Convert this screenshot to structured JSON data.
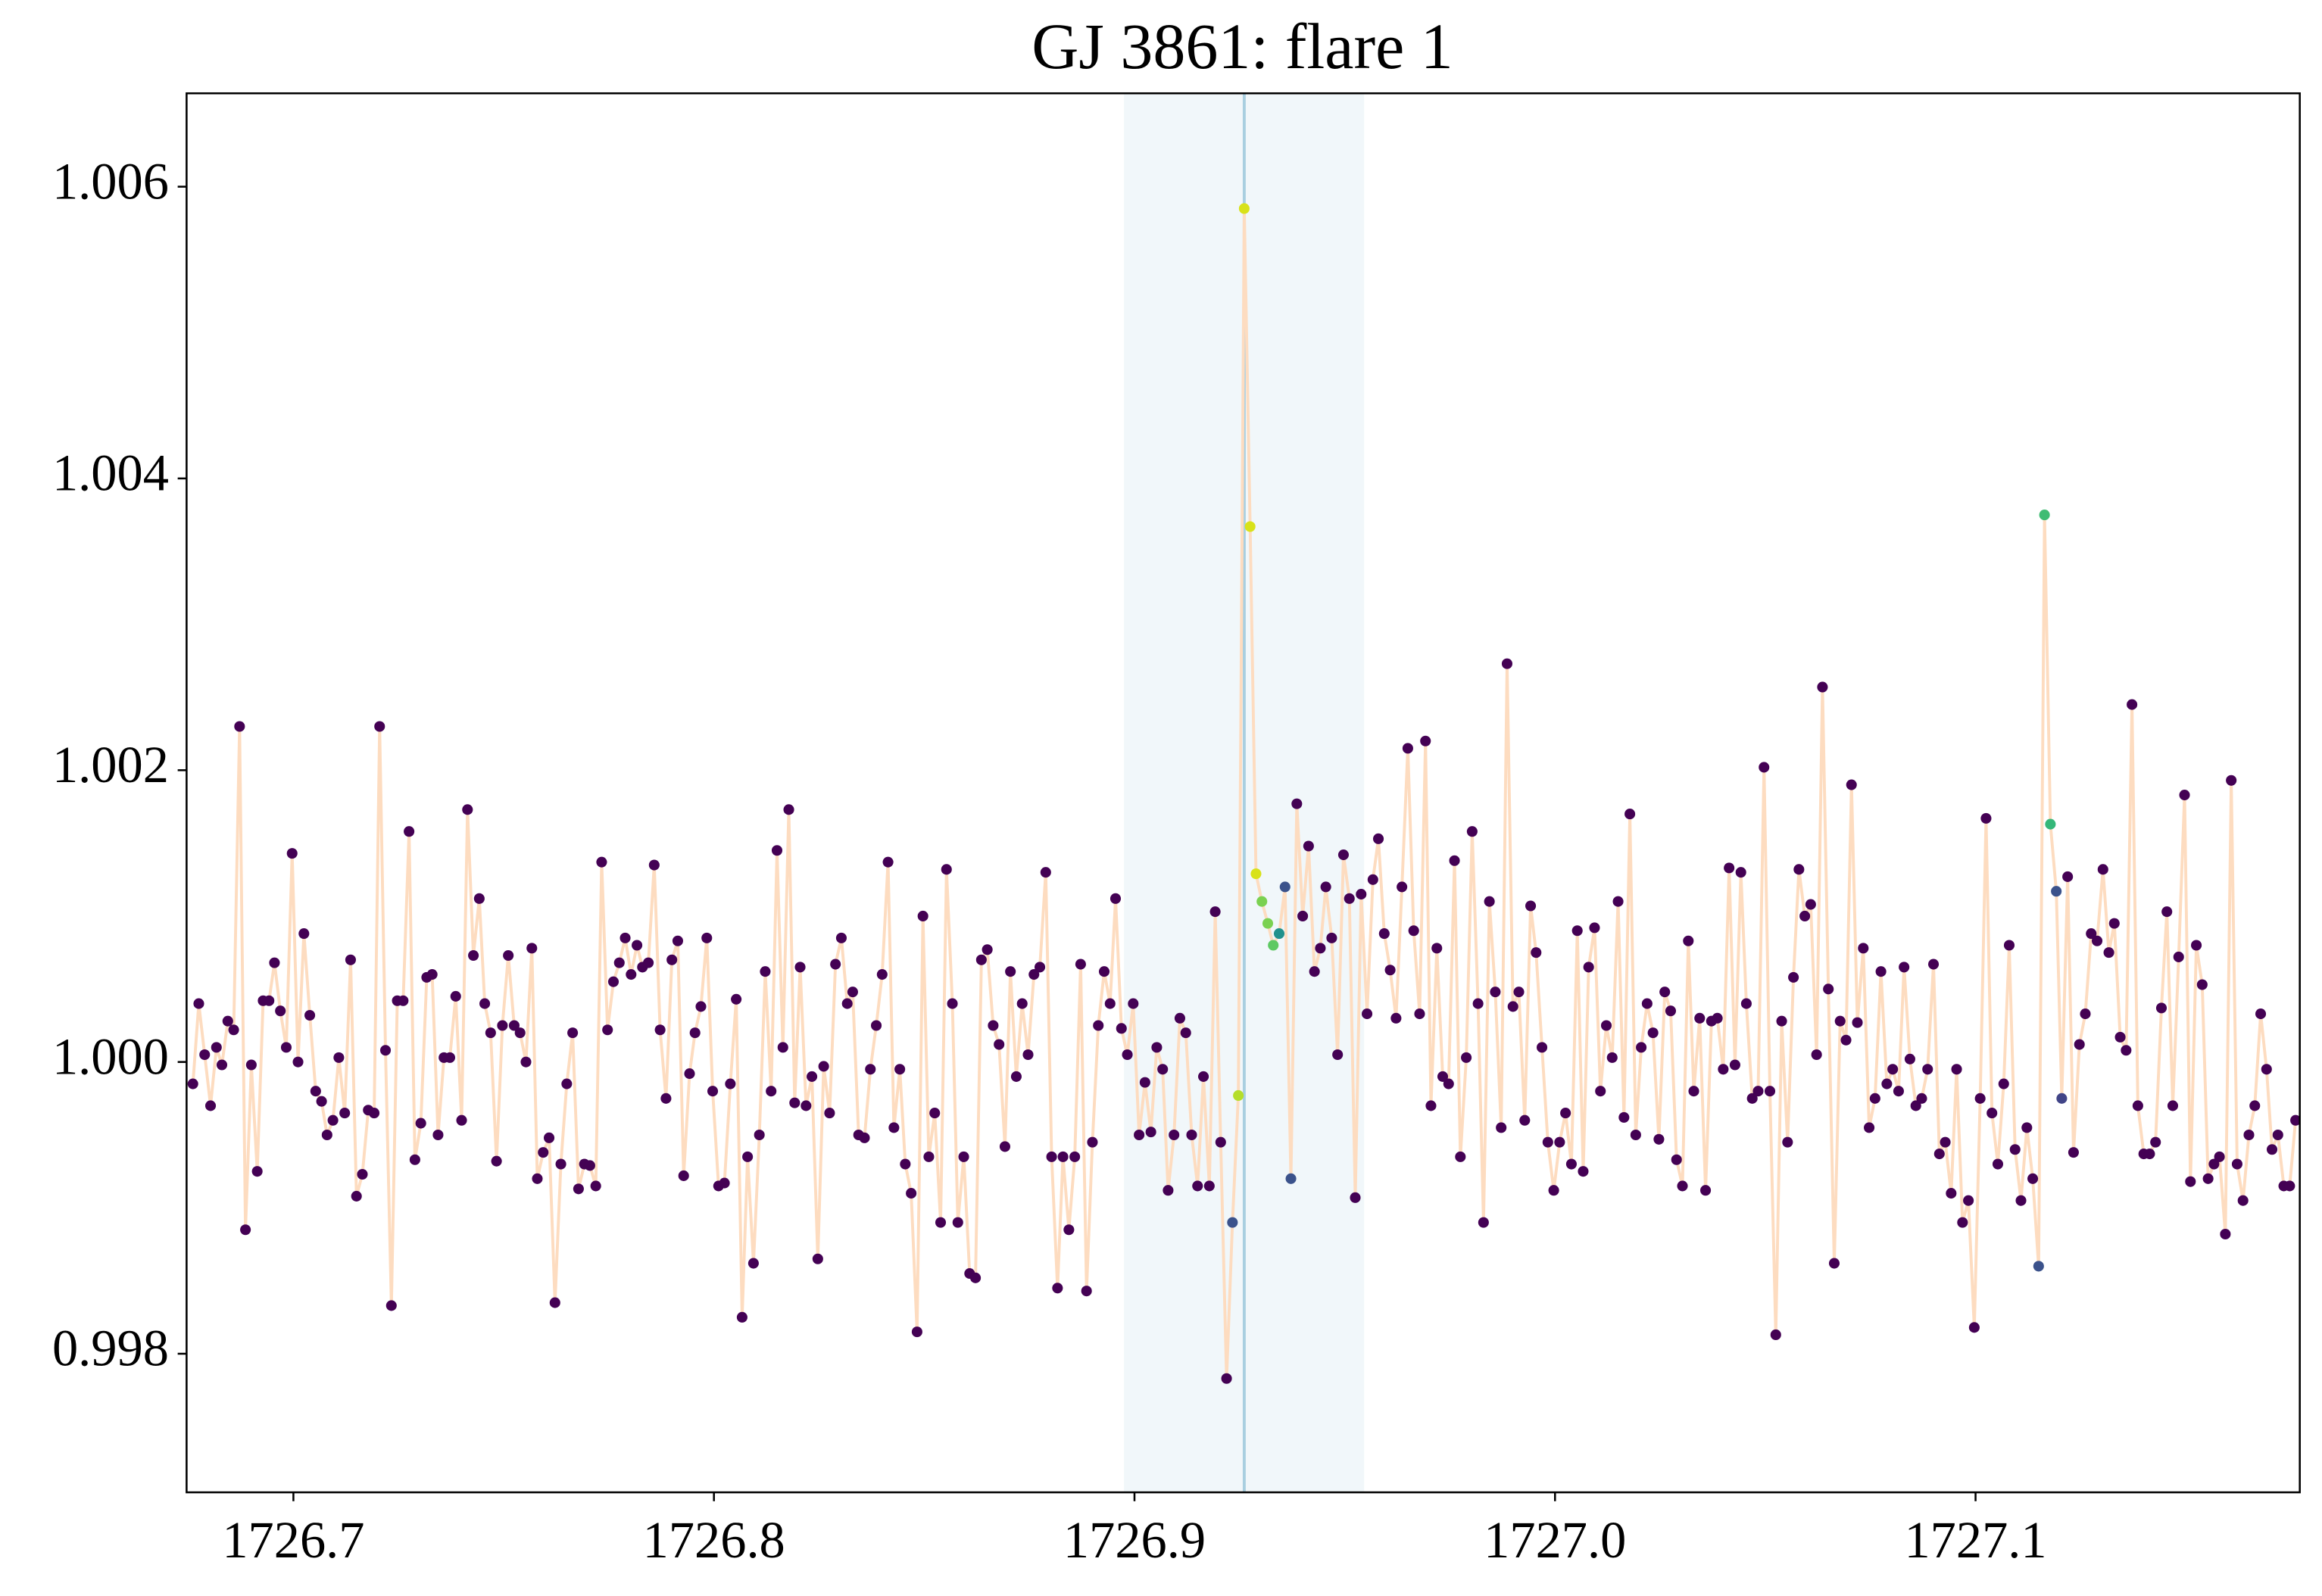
{
  "chart_data": {
    "type": "scatter-line",
    "title": "GJ 3861: flare 1",
    "xlim": [
      1726.6746,
      1727.1771
    ],
    "ylim": [
      0.99705,
      1.00664
    ],
    "xticks": [
      1726.7,
      1726.8,
      1726.9,
      {
        "value": 1727,
        "label": "1727.0"
      },
      1727.1
    ],
    "yticks": [
      0.998,
      {
        "value": 1,
        "label": "1.000"
      },
      1.002,
      1.004,
      1.006
    ],
    "span": [
      1726.8975,
      1726.9546
    ],
    "span_color": "#f1f7fa",
    "vline": 1726.9261,
    "vline_color": "#a9cfe0",
    "series": [
      {
        "color": "#440154",
        "line_color": "#fddcc0",
        "marker_colors": {
          "178": "#3b528b",
          "179": "#b5de2b",
          "180": "#d8e219",
          "181": "#d8e219",
          "182": "#d8e219",
          "183": "#7ad151",
          "184": "#7ad151",
          "185": "#5ec962",
          "186": "#21918c",
          "187": "#3b528b",
          "188": "#3b528b",
          "316": "#3b528b",
          "317": "#3fbc73",
          "318": "#35b779",
          "319": "#3b528b",
          "320": "#414487"
        },
        "x": [
          1726.6761,
          1726.6775,
          1726.6789,
          1726.6803,
          1726.6817,
          1726.683,
          1726.6844,
          1726.6858,
          1726.6872,
          1726.6886,
          1726.69,
          1726.6914,
          1726.6928,
          1726.6942,
          1726.6955,
          1726.6969,
          1726.6983,
          1726.6997,
          1726.7011,
          1726.7025,
          1726.7039,
          1726.7053,
          1726.7067,
          1726.708,
          1726.7094,
          1726.7108,
          1726.7122,
          1726.7136,
          1726.715,
          1726.7164,
          1726.7178,
          1726.7192,
          1726.7205,
          1726.7219,
          1726.7233,
          1726.7247,
          1726.7261,
          1726.7275,
          1726.7289,
          1726.7303,
          1726.7317,
          1726.733,
          1726.7344,
          1726.7358,
          1726.7372,
          1726.7386,
          1726.74,
          1726.7414,
          1726.7428,
          1726.7442,
          1726.7455,
          1726.7469,
          1726.7483,
          1726.7497,
          1726.7511,
          1726.7525,
          1726.7539,
          1726.7553,
          1726.7567,
          1726.758,
          1726.7594,
          1726.7608,
          1726.7622,
          1726.7636,
          1726.765,
          1726.7664,
          1726.7678,
          1726.7692,
          1726.7705,
          1726.7719,
          1726.7733,
          1726.7747,
          1726.7761,
          1726.7775,
          1726.7789,
          1726.7803,
          1726.7817,
          1726.783,
          1726.7844,
          1726.7858,
          1726.7872,
          1726.7886,
          1726.79,
          1726.7914,
          1726.7928,
          1726.7942,
          1726.7955,
          1726.7969,
          1726.7983,
          1726.7997,
          1726.8011,
          1726.8025,
          1726.8039,
          1726.8053,
          1726.8067,
          1726.808,
          1726.8094,
          1726.8108,
          1726.8122,
          1726.8136,
          1726.815,
          1726.8164,
          1726.8178,
          1726.8192,
          1726.8205,
          1726.8219,
          1726.8233,
          1726.8247,
          1726.8261,
          1726.8275,
          1726.8289,
          1726.8303,
          1726.8317,
          1726.833,
          1726.8344,
          1726.8358,
          1726.8372,
          1726.8386,
          1726.84,
          1726.8414,
          1726.8428,
          1726.8442,
          1726.8455,
          1726.8469,
          1726.8483,
          1726.8497,
          1726.8511,
          1726.8525,
          1726.8539,
          1726.8553,
          1726.8567,
          1726.858,
          1726.8594,
          1726.8608,
          1726.8622,
          1726.8636,
          1726.865,
          1726.8664,
          1726.8678,
          1726.8692,
          1726.8705,
          1726.8719,
          1726.8733,
          1726.8747,
          1726.8761,
          1726.8775,
          1726.8789,
          1726.8803,
          1726.8817,
          1726.883,
          1726.8844,
          1726.8858,
          1726.8872,
          1726.8886,
          1726.89,
          1726.8914,
          1726.8928,
          1726.8942,
          1726.8955,
          1726.8969,
          1726.8983,
          1726.8997,
          1726.9011,
          1726.9025,
          1726.9039,
          1726.9053,
          1726.9067,
          1726.908,
          1726.9094,
          1726.9108,
          1726.9122,
          1726.9136,
          1726.915,
          1726.9164,
          1726.9178,
          1726.9192,
          1726.9205,
          1726.9219,
          1726.9233,
          1726.9247,
          1726.9261,
          1726.9275,
          1726.9289,
          1726.9303,
          1726.9317,
          1726.933,
          1726.9344,
          1726.9358,
          1726.9372,
          1726.9386,
          1726.94,
          1726.9414,
          1726.9428,
          1726.9442,
          1726.9455,
          1726.9469,
          1726.9483,
          1726.9497,
          1726.9511,
          1726.9525,
          1726.9539,
          1726.9553,
          1726.9567,
          1726.958,
          1726.9594,
          1726.9608,
          1726.9622,
          1726.9636,
          1726.965,
          1726.9664,
          1726.9678,
          1726.9692,
          1726.9705,
          1726.9719,
          1726.9733,
          1726.9747,
          1726.9761,
          1726.9775,
          1726.9789,
          1726.9803,
          1726.9817,
          1726.983,
          1726.9844,
          1726.9858,
          1726.9872,
          1726.9886,
          1726.99,
          1726.9914,
          1726.9928,
          1726.9942,
          1726.9955,
          1726.9969,
          1726.9983,
          1726.9997,
          1727.0011,
          1727.0025,
          1727.0039,
          1727.0053,
          1727.0067,
          1727.008,
          1727.0094,
          1727.0108,
          1727.0122,
          1727.0136,
          1727.015,
          1727.0164,
          1727.0178,
          1727.0192,
          1727.0205,
          1727.0219,
          1727.0233,
          1727.0247,
          1727.0261,
          1727.0275,
          1727.0289,
          1727.0303,
          1727.0317,
          1727.033,
          1727.0344,
          1727.0358,
          1727.0372,
          1727.0386,
          1727.04,
          1727.0414,
          1727.0428,
          1727.0442,
          1727.0455,
          1727.0469,
          1727.0483,
          1727.0497,
          1727.0511,
          1727.0525,
          1727.0539,
          1727.0553,
          1727.0567,
          1727.058,
          1727.0594,
          1727.0608,
          1727.0622,
          1727.0636,
          1727.065,
          1727.0664,
          1727.0678,
          1727.0692,
          1727.0705,
          1727.0719,
          1727.0733,
          1727.0747,
          1727.0761,
          1727.0775,
          1727.0789,
          1727.0803,
          1727.0817,
          1727.083,
          1727.0844,
          1727.0858,
          1727.0872,
          1727.0886,
          1727.09,
          1727.0914,
          1727.0928,
          1727.0942,
          1727.0955,
          1727.0969,
          1727.0983,
          1727.0997,
          1727.1011,
          1727.1025,
          1727.1039,
          1727.1053,
          1727.1067,
          1727.108,
          1727.1094,
          1727.1108,
          1727.1122,
          1727.1136,
          1727.115,
          1727.1164,
          1727.1178,
          1727.1192,
          1727.1205,
          1727.1219,
          1727.1233,
          1727.1247,
          1727.1261,
          1727.1275,
          1727.1289,
          1727.1303,
          1727.1317,
          1727.133,
          1727.1344,
          1727.1358,
          1727.1372,
          1727.1386,
          1727.14,
          1727.1414,
          1727.1428,
          1727.1442,
          1727.1455,
          1727.1469,
          1727.1483,
          1727.1497,
          1727.1511,
          1727.1525,
          1727.1539,
          1727.1553,
          1727.1567,
          1727.158,
          1727.1594,
          1727.1608,
          1727.1622,
          1727.1636,
          1727.165,
          1727.1664,
          1727.1678,
          1727.1692,
          1727.1705,
          1727.1719,
          1727.1733,
          1727.1747,
          1727.1761
        ],
        "values": [
          0.99985,
          1.0004,
          1.00005,
          0.9997,
          1.0001,
          0.99998,
          1.00028,
          1.00022,
          1.0023,
          0.99885,
          0.99998,
          0.99925,
          1.00042,
          1.00042,
          1.00068,
          1.00035,
          1.0001,
          1.00143,
          1.0,
          1.00088,
          1.00032,
          0.9998,
          0.99973,
          0.9995,
          0.9996,
          1.00003,
          0.99965,
          1.0007,
          0.99908,
          0.99923,
          0.99967,
          0.99965,
          1.0023,
          1.00008,
          0.99833,
          1.00042,
          1.00042,
          1.00158,
          0.99933,
          0.99958,
          1.00058,
          1.0006,
          0.9995,
          1.00003,
          1.00003,
          1.00045,
          0.9996,
          1.00173,
          1.00073,
          1.00112,
          1.0004,
          1.0002,
          0.99932,
          1.00025,
          1.00073,
          1.00025,
          1.0002,
          1.0,
          1.00078,
          0.9992,
          0.99938,
          0.99948,
          0.99835,
          0.9993,
          0.99985,
          1.0002,
          0.99913,
          0.9993,
          0.99929,
          0.99915,
          1.00137,
          1.00022,
          1.00055,
          1.00068,
          1.00085,
          1.0006,
          1.0008,
          1.00065,
          1.00068,
          1.00135,
          1.00022,
          0.99975,
          1.0007,
          1.00083,
          0.99922,
          0.99992,
          1.0002,
          1.00038,
          1.00085,
          0.9998,
          0.99915,
          0.99917,
          0.99985,
          1.00043,
          0.99825,
          0.99935,
          0.99862,
          0.9995,
          1.00062,
          0.9998,
          1.00145,
          1.0001,
          1.00173,
          0.99972,
          1.00065,
          0.9997,
          0.9999,
          0.99865,
          0.99997,
          0.99965,
          1.00067,
          1.00085,
          1.0004,
          1.00048,
          0.9995,
          0.99948,
          0.99995,
          1.00025,
          1.0006,
          1.00137,
          0.99955,
          0.99995,
          0.9993,
          0.9991,
          0.99815,
          1.001,
          0.99935,
          0.99965,
          0.9989,
          1.00132,
          1.0004,
          0.9989,
          0.99935,
          0.99855,
          0.99852,
          1.0007,
          1.00077,
          1.00025,
          1.00012,
          0.99942,
          1.00062,
          0.9999,
          1.0004,
          1.00005,
          1.0006,
          1.00065,
          1.0013,
          0.99935,
          0.99845,
          0.99935,
          0.99885,
          0.99935,
          1.00067,
          0.99843,
          0.99945,
          1.00025,
          1.00062,
          1.0004,
          1.00112,
          1.00023,
          1.00005,
          1.0004,
          0.9995,
          0.99986,
          0.99952,
          1.0001,
          0.99995,
          0.99912,
          0.9995,
          1.0003,
          1.0002,
          0.9995,
          0.99915,
          0.9999,
          0.99915,
          1.00103,
          0.99945,
          0.99783,
          0.9989,
          0.99977,
          1.00585,
          1.00367,
          1.00129,
          1.0011,
          1.00095,
          1.0008,
          1.00088,
          1.0012,
          0.9992,
          1.00177,
          1.001,
          1.00148,
          1.00062,
          1.00078,
          1.0012,
          1.00085,
          1.00005,
          1.00142,
          1.00112,
          0.99907,
          1.00115,
          1.00033,
          1.00125,
          1.00153,
          1.00088,
          1.00063,
          1.0003,
          1.0012,
          1.00215,
          1.0009,
          1.00033,
          1.0022,
          0.9997,
          1.00078,
          0.9999,
          0.99985,
          1.00138,
          0.99935,
          1.00003,
          1.00158,
          1.0004,
          0.9989,
          1.0011,
          1.00048,
          0.99955,
          1.00273,
          1.00038,
          1.00048,
          0.9996,
          1.00107,
          1.00075,
          1.0001,
          0.99945,
          0.99912,
          0.99945,
          0.99965,
          0.9993,
          1.0009,
          0.99925,
          1.00065,
          1.00092,
          0.9998,
          1.00025,
          1.00003,
          1.0011,
          0.99962,
          1.0017,
          0.9995,
          1.0001,
          1.0004,
          1.0002,
          0.99947,
          1.00048,
          1.00035,
          0.99933,
          0.99915,
          1.00083,
          0.9998,
          1.0003,
          0.99912,
          1.00028,
          1.0003,
          0.99995,
          1.00133,
          0.99998,
          1.0013,
          1.0004,
          0.99975,
          0.9998,
          1.00202,
          0.9998,
          0.99813,
          1.00028,
          0.99945,
          1.00058,
          1.00132,
          1.001,
          1.00108,
          1.00005,
          1.00257,
          1.0005,
          0.99862,
          1.00028,
          1.00015,
          1.0019,
          1.00027,
          1.00078,
          0.99955,
          0.99975,
          1.00062,
          0.99985,
          0.99995,
          0.9998,
          1.00065,
          1.00002,
          0.9997,
          0.99975,
          0.99995,
          1.00067,
          0.99937,
          0.99945,
          0.9991,
          0.99995,
          0.9989,
          0.99905,
          0.99818,
          0.99975,
          1.00167,
          0.99965,
          0.9993,
          0.99985,
          1.0008,
          0.9994,
          0.99905,
          0.99955,
          0.9992,
          0.9986,
          1.00375,
          1.00163,
          1.00117,
          0.99975,
          1.00127,
          0.99938,
          1.00012,
          1.00033,
          1.00088,
          1.00083,
          1.00132,
          1.00075,
          1.00095,
          1.00017,
          1.00008,
          1.00245,
          0.9997,
          0.99937,
          0.99937,
          0.99945,
          1.00037,
          1.00103,
          0.9997,
          1.00072,
          1.00183,
          0.99918,
          1.0008,
          1.00053,
          0.9992,
          0.9993,
          0.99935,
          0.99882,
          1.00193,
          0.9993,
          0.99905,
          0.9995,
          0.9997,
          1.00033,
          0.99995,
          0.9994,
          0.9995,
          0.99915,
          0.99915,
          0.9996
        ]
      }
    ]
  }
}
